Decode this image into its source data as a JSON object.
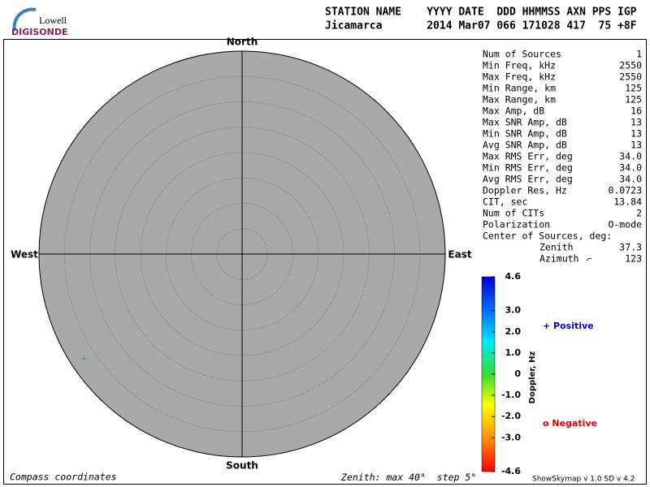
{
  "logo": {
    "top": "Lowell",
    "bottom": "DIGISONDE"
  },
  "header": {
    "labels": "STATION NAME    YYYY DATE  DDD HHMMSS AXN PPS IGP",
    "values": "Jicamarca       2014 Mar07 066 171028 417  75 +8F"
  },
  "skymap": {
    "directions": {
      "north": "North",
      "south": "South",
      "west": "West",
      "east": "East"
    },
    "zenith_max": 40,
    "zenith_step": 5,
    "sources": [
      {
        "zenith": 37.3,
        "azimuth": 236.5,
        "color": "#00b0f0"
      }
    ]
  },
  "stats": {
    "rows": [
      [
        "Num of Sources",
        "1"
      ],
      [
        "Min Freq, kHz",
        "2550"
      ],
      [
        "Max Freq, kHz",
        "2550"
      ],
      [
        "Min Range, km",
        "125"
      ],
      [
        "Max Range, km",
        "125"
      ],
      [
        "Max Amp, dB",
        "16"
      ],
      [
        "Max SNR Amp, dB",
        "13"
      ],
      [
        "Min SNR Amp, dB",
        "13"
      ],
      [
        "Avg SNR Amp, dB",
        "13"
      ],
      [
        "Max RMS Err, deg",
        "34.0"
      ],
      [
        "Min RMS Err, deg",
        "34.0"
      ],
      [
        "Avg RMS Err, deg",
        "34.0"
      ],
      [
        "Doppler Res, Hz",
        "0.0723"
      ],
      [
        "CIT, sec",
        "13.84"
      ],
      [
        "Num of CITs",
        "2"
      ],
      [
        "Polarization",
        "O-mode"
      ]
    ],
    "center_title": "Center of Sources, deg:",
    "zenith_label": "Zenith",
    "zenith_value": "37.3",
    "azimuth_label": "Azimuth",
    "azimuth_value": "123"
  },
  "colorbar": {
    "label": "Doppler, Hz",
    "lim": [
      -4.6,
      4.6
    ],
    "ticks": [
      4.6,
      {
        "value": 3,
        "label": "3.0"
      },
      {
        "value": 2,
        "label": "2.0"
      },
      {
        "value": 1,
        "label": "1.0"
      },
      0,
      {
        "value": -1,
        "label": "-1.0"
      },
      {
        "value": -2,
        "label": "-2.0"
      },
      {
        "value": -3,
        "label": "-3.0"
      },
      -4.6
    ],
    "positive": "+ Positive",
    "negative": "o Negative"
  },
  "footer": {
    "left": "Compass coordinates",
    "zenith_prefix": "Zenith: max",
    "degree": "°",
    "step_prefix": "step",
    "version": "ShowSkymap v 1.0  SD v 4.2"
  }
}
